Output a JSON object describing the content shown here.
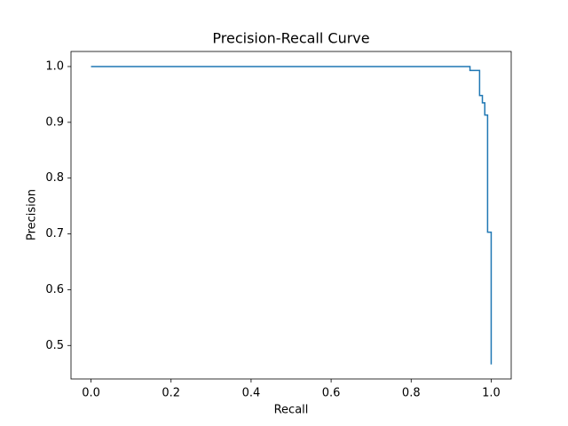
{
  "chart_data": {
    "type": "line",
    "title": "Precision-Recall Curve",
    "x_label": "Recall",
    "y_label": "Precision",
    "x": [
      0,
      0.947,
      0.947,
      0.971,
      0.971,
      0.978,
      0.978,
      0.984,
      0.984,
      0.991,
      0.991,
      1.0,
      1.0
    ],
    "series": [
      {
        "color": "#1f77b4",
        "values": [
          1,
          1,
          0.993,
          0.993,
          0.948,
          0.948,
          0.935,
          0.935,
          0.913,
          0.913,
          0.703,
          0.703,
          0.466
        ]
      }
    ],
    "xlim": [
      -0.05,
      1.05
    ],
    "ylim": [
      0.44,
      1.027
    ],
    "xticks": [
      {
        "value": 0,
        "label": "0.0"
      },
      {
        "value": 0.2,
        "label": "0.2"
      },
      {
        "value": 0.4,
        "label": "0.4"
      },
      {
        "value": 0.6,
        "label": "0.6"
      },
      {
        "value": 0.8,
        "label": "0.8"
      },
      {
        "value": 1,
        "label": "1.0"
      }
    ],
    "yticks": [
      {
        "value": 0.5,
        "label": "0.5"
      },
      {
        "value": 0.6,
        "label": "0.6"
      },
      {
        "value": 0.7,
        "label": "0.7"
      },
      {
        "value": 0.8,
        "label": "0.8"
      },
      {
        "value": 0.9,
        "label": "0.9"
      },
      {
        "value": 1,
        "label": "1.0"
      }
    ]
  }
}
